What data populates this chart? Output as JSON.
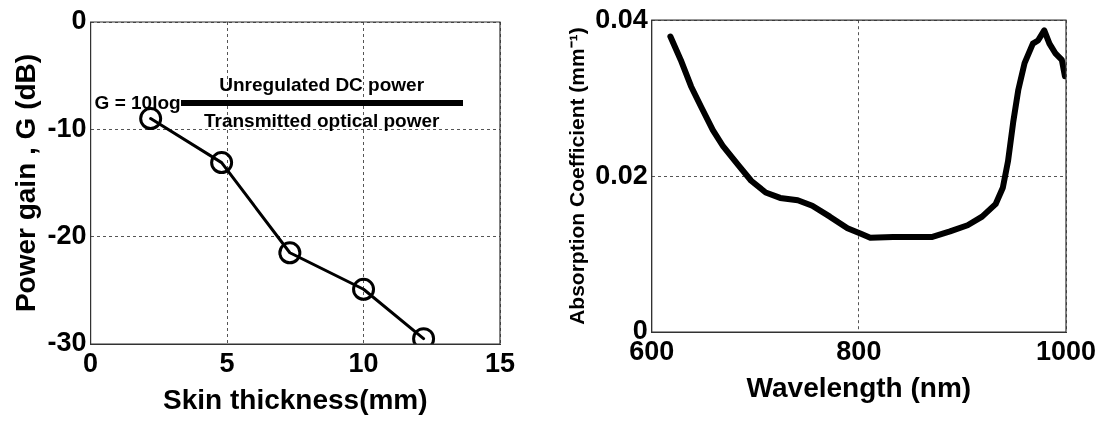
{
  "chart_data": [
    {
      "type": "line",
      "xlabel": "Skin thickness(mm)",
      "ylabel": "Power gain , G (dB)",
      "x": [
        2.2,
        4.8,
        7.3,
        10,
        12.2
      ],
      "values": [
        -9,
        -13.1,
        -21.5,
        -24.9,
        -29.5
      ],
      "color": "#000000",
      "marker": "circle",
      "line_style": "solid",
      "xlim": [
        0,
        15
      ],
      "xticks": [
        0,
        5,
        10,
        15
      ],
      "ylim": [
        -30,
        0
      ],
      "yticks": [
        -30,
        -20,
        -10,
        0
      ],
      "grid": true,
      "legend": false,
      "annotations": [
        "G = 10log",
        "Unregulated DC power",
        "Transmitted optical power"
      ]
    },
    {
      "type": "line",
      "xlabel": "Wavelength (nm)",
      "ylabel": "Absorption Coefficient (mm⁻¹)",
      "x": [
        618,
        628,
        638,
        648,
        659,
        669,
        683,
        696,
        710,
        724,
        741,
        755,
        772,
        789,
        802,
        811,
        833,
        854,
        871,
        888,
        905,
        919,
        932,
        939,
        944,
        949,
        954,
        960,
        968,
        973,
        979,
        984,
        990,
        996,
        999
      ],
      "values": [
        0.0379,
        0.0349,
        0.0315,
        0.0288,
        0.0259,
        0.0238,
        0.0215,
        0.0194,
        0.0179,
        0.0172,
        0.0169,
        0.0162,
        0.0148,
        0.0133,
        0.0126,
        0.0121,
        0.0122,
        0.0122,
        0.0122,
        0.0129,
        0.0137,
        0.0148,
        0.0164,
        0.0185,
        0.0219,
        0.0269,
        0.0311,
        0.0345,
        0.037,
        0.0374,
        0.0387,
        0.037,
        0.0357,
        0.0349,
        0.0328
      ],
      "color": "#000000",
      "marker": "none",
      "line_style": "solid",
      "xlim": [
        600,
        1000
      ],
      "xticks": [
        600,
        800,
        1000
      ],
      "ylim": [
        0,
        0.04
      ],
      "yticks": [
        0,
        0.02,
        0.04
      ],
      "grid": true,
      "legend": false
    }
  ]
}
